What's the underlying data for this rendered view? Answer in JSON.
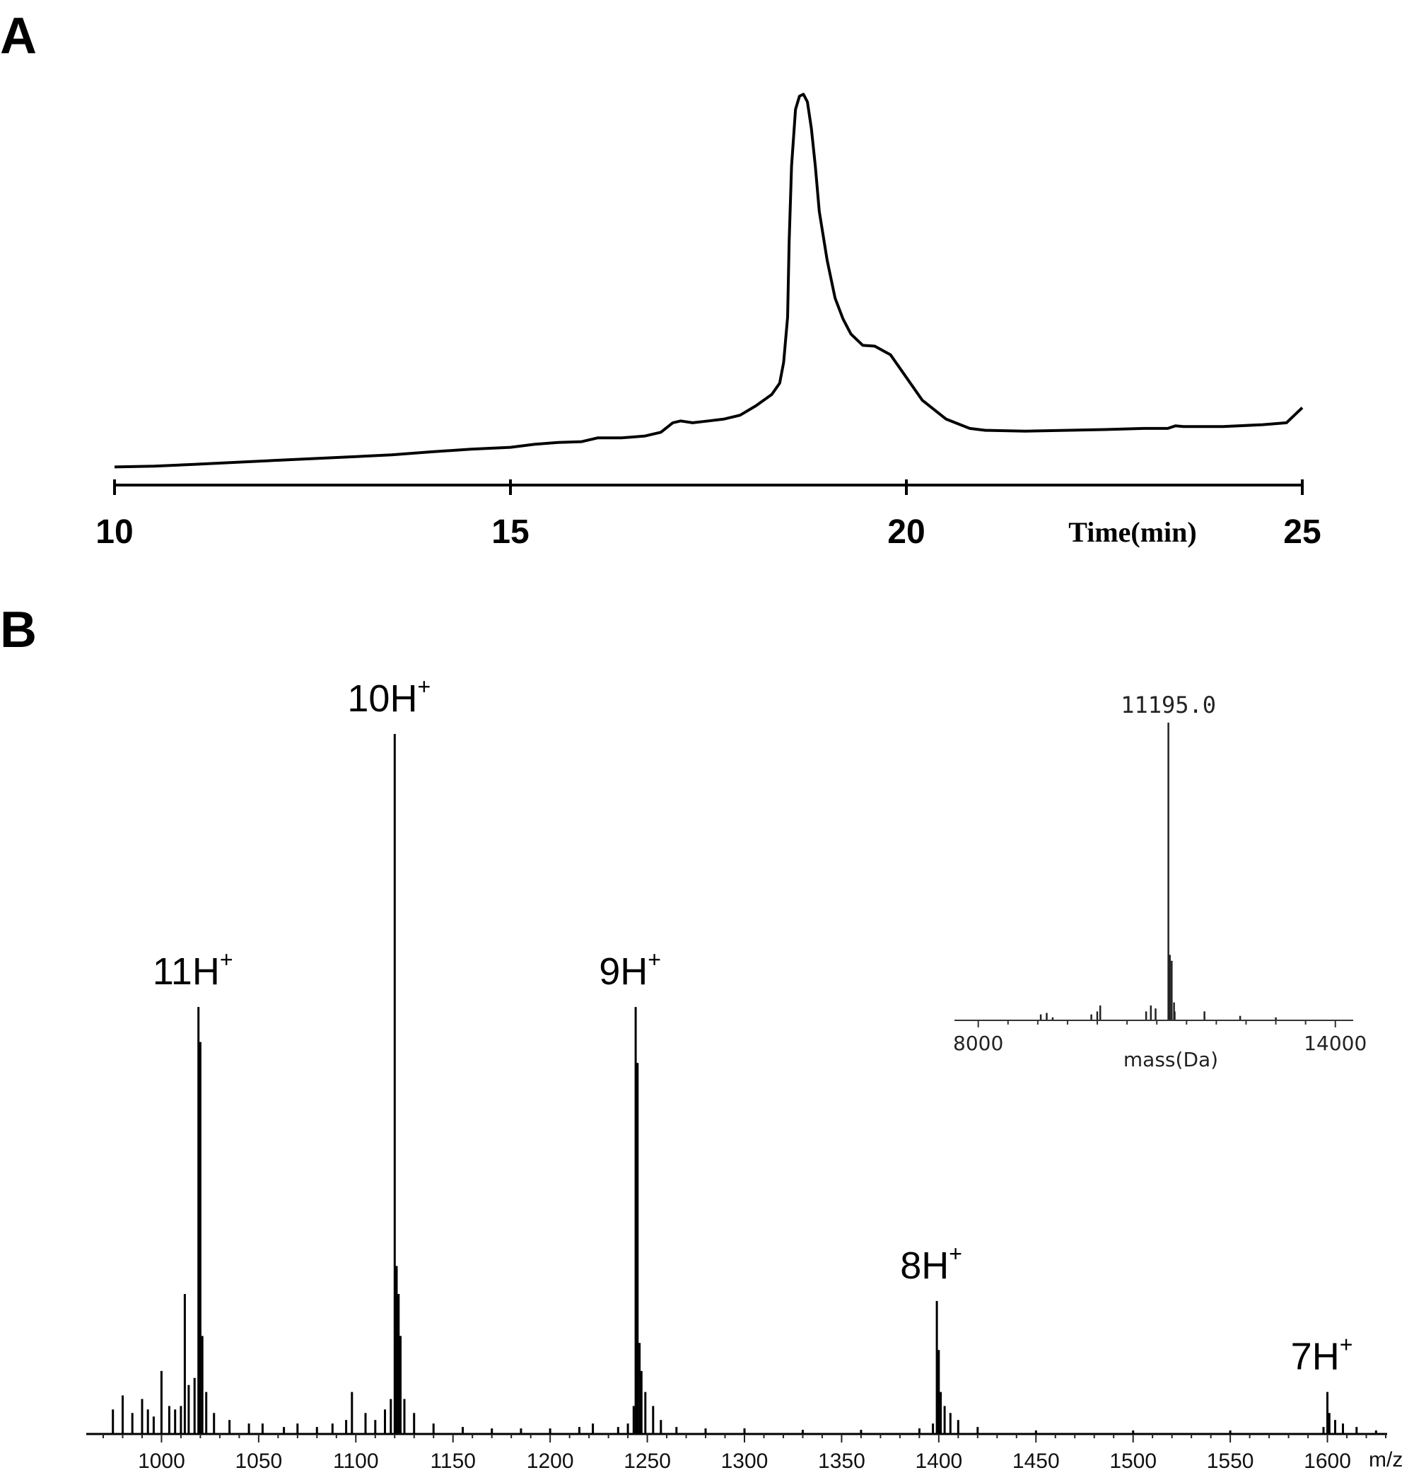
{
  "panels": {
    "a": {
      "letter": "A"
    },
    "b": {
      "letter": "B"
    }
  },
  "chart_data": [
    {
      "type": "line",
      "panel": "A",
      "xlabel": "Time(min)",
      "ylabel": "",
      "xlim": [
        10,
        25
      ],
      "ylim": [
        0,
        100
      ],
      "xticks": [
        10,
        15,
        20,
        25
      ],
      "grid": false,
      "series": [
        {
          "x": [
            10.0,
            10.5,
            11.0,
            11.5,
            12.0,
            12.5,
            13.0,
            13.5,
            14.0,
            14.5,
            15.0,
            15.3,
            15.6,
            15.9,
            16.1,
            16.4,
            16.7,
            16.9,
            17.05,
            17.15,
            17.3,
            17.5,
            17.7,
            17.9,
            18.1,
            18.3,
            18.4,
            18.45,
            18.5,
            18.52,
            18.55,
            18.6,
            18.65,
            18.7,
            18.75,
            18.8,
            18.85,
            18.9,
            19.0,
            19.1,
            19.2,
            19.3,
            19.45,
            19.6,
            19.8,
            20.0,
            20.2,
            20.5,
            20.8,
            21.0,
            21.5,
            22.0,
            22.5,
            23.0,
            23.3,
            23.4,
            23.5,
            24.0,
            24.5,
            24.8,
            24.9,
            25.0
          ],
          "y": [
            0.3,
            0.5,
            1.0,
            1.5,
            2.0,
            2.5,
            3.0,
            3.5,
            4.3,
            5.0,
            5.5,
            6.3,
            6.8,
            7.0,
            8.0,
            8.0,
            8.5,
            9.5,
            12.0,
            12.5,
            12.0,
            12.5,
            13.0,
            14.0,
            16.5,
            19.5,
            22.5,
            28.0,
            40.0,
            60.0,
            80.0,
            95.0,
            98.5,
            99.0,
            97.0,
            90.0,
            80.0,
            68.0,
            55.0,
            45.0,
            39.5,
            35.5,
            32.5,
            32.3,
            30.0,
            24.0,
            18.0,
            13.0,
            10.5,
            10.0,
            9.8,
            10.0,
            10.2,
            10.5,
            10.5,
            11.2,
            11.0,
            11.0,
            11.5,
            12.0,
            14.0,
            16.0
          ]
        }
      ]
    },
    {
      "type": "bar",
      "panel": "B",
      "xlabel": "m/z",
      "ylabel": "",
      "xlim": [
        962,
        1630
      ],
      "ylim": [
        0,
        100
      ],
      "xticks": [
        1000,
        1050,
        1100,
        1150,
        1200,
        1250,
        1300,
        1350,
        1400,
        1450,
        1500,
        1550,
        1600
      ],
      "grid": false,
      "annotations": [
        {
          "label": "11H",
          "sup": "+",
          "x": 1019
        },
        {
          "label": "10H",
          "sup": "+",
          "x": 1120
        },
        {
          "label": "9H",
          "sup": "+",
          "x": 1244
        },
        {
          "label": "8H",
          "sup": "+",
          "x": 1399
        },
        {
          "label": "7H",
          "sup": "+",
          "x": 1600
        }
      ],
      "peaks": [
        {
          "x": 975,
          "y": 3.5
        },
        {
          "x": 980,
          "y": 5.5
        },
        {
          "x": 985,
          "y": 3.0
        },
        {
          "x": 990,
          "y": 5.0
        },
        {
          "x": 993,
          "y": 3.5
        },
        {
          "x": 996,
          "y": 2.5
        },
        {
          "x": 1000,
          "y": 9.0
        },
        {
          "x": 1004,
          "y": 4.0
        },
        {
          "x": 1007,
          "y": 3.5
        },
        {
          "x": 1010,
          "y": 4.0
        },
        {
          "x": 1012,
          "y": 20.0
        },
        {
          "x": 1014,
          "y": 7.0
        },
        {
          "x": 1017,
          "y": 8.0
        },
        {
          "x": 1019,
          "y": 61.0
        },
        {
          "x": 1020,
          "y": 56.0
        },
        {
          "x": 1021,
          "y": 14.0
        },
        {
          "x": 1023,
          "y": 6.0
        },
        {
          "x": 1027,
          "y": 3.0
        },
        {
          "x": 1035,
          "y": 2.0
        },
        {
          "x": 1045,
          "y": 1.5
        },
        {
          "x": 1052,
          "y": 1.5
        },
        {
          "x": 1063,
          "y": 1.0
        },
        {
          "x": 1070,
          "y": 1.5
        },
        {
          "x": 1080,
          "y": 1.0
        },
        {
          "x": 1088,
          "y": 1.5
        },
        {
          "x": 1095,
          "y": 2.0
        },
        {
          "x": 1098,
          "y": 6.0
        },
        {
          "x": 1105,
          "y": 3.0
        },
        {
          "x": 1110,
          "y": 2.0
        },
        {
          "x": 1115,
          "y": 3.5
        },
        {
          "x": 1118,
          "y": 5.0
        },
        {
          "x": 1120,
          "y": 100.0
        },
        {
          "x": 1121,
          "y": 24.0
        },
        {
          "x": 1122,
          "y": 20.0
        },
        {
          "x": 1123,
          "y": 14.0
        },
        {
          "x": 1125,
          "y": 5.0
        },
        {
          "x": 1130,
          "y": 3.0
        },
        {
          "x": 1140,
          "y": 1.5
        },
        {
          "x": 1155,
          "y": 1.0
        },
        {
          "x": 1170,
          "y": 0.8
        },
        {
          "x": 1185,
          "y": 0.8
        },
        {
          "x": 1200,
          "y": 0.8
        },
        {
          "x": 1215,
          "y": 1.0
        },
        {
          "x": 1222,
          "y": 1.5
        },
        {
          "x": 1235,
          "y": 1.0
        },
        {
          "x": 1240,
          "y": 1.5
        },
        {
          "x": 1243,
          "y": 4.0
        },
        {
          "x": 1244,
          "y": 61.0
        },
        {
          "x": 1245,
          "y": 53.0
        },
        {
          "x": 1246,
          "y": 13.0
        },
        {
          "x": 1247,
          "y": 9.0
        },
        {
          "x": 1249,
          "y": 6.0
        },
        {
          "x": 1253,
          "y": 4.0
        },
        {
          "x": 1257,
          "y": 2.0
        },
        {
          "x": 1265,
          "y": 1.0
        },
        {
          "x": 1280,
          "y": 0.8
        },
        {
          "x": 1300,
          "y": 0.8
        },
        {
          "x": 1330,
          "y": 0.6
        },
        {
          "x": 1360,
          "y": 0.6
        },
        {
          "x": 1390,
          "y": 0.8
        },
        {
          "x": 1397,
          "y": 1.5
        },
        {
          "x": 1399,
          "y": 19.0
        },
        {
          "x": 1400,
          "y": 12.0
        },
        {
          "x": 1401,
          "y": 6.0
        },
        {
          "x": 1403,
          "y": 4.0
        },
        {
          "x": 1406,
          "y": 3.0
        },
        {
          "x": 1410,
          "y": 2.0
        },
        {
          "x": 1420,
          "y": 1.0
        },
        {
          "x": 1450,
          "y": 0.5
        },
        {
          "x": 1500,
          "y": 0.5
        },
        {
          "x": 1550,
          "y": 0.5
        },
        {
          "x": 1598,
          "y": 1.0
        },
        {
          "x": 1600,
          "y": 6.0
        },
        {
          "x": 1601,
          "y": 3.0
        },
        {
          "x": 1604,
          "y": 2.0
        },
        {
          "x": 1608,
          "y": 1.5
        },
        {
          "x": 1615,
          "y": 1.0
        },
        {
          "x": 1625,
          "y": 0.5
        }
      ]
    },
    {
      "type": "bar",
      "panel": "B-inset",
      "xlabel": "mass(Da)",
      "ylabel": "",
      "xlim": [
        7600,
        14300
      ],
      "ylim": [
        0,
        100
      ],
      "xticks": [
        8000,
        14000
      ],
      "grid": false,
      "annotations": [
        {
          "label": "11195.0",
          "x": 11195
        }
      ],
      "peaks": [
        {
          "x": 9050,
          "y": 2.0
        },
        {
          "x": 9150,
          "y": 2.5
        },
        {
          "x": 9250,
          "y": 1.0
        },
        {
          "x": 9900,
          "y": 2.0
        },
        {
          "x": 10000,
          "y": 3.0
        },
        {
          "x": 10050,
          "y": 5.0
        },
        {
          "x": 10820,
          "y": 3.0
        },
        {
          "x": 10900,
          "y": 5.0
        },
        {
          "x": 10980,
          "y": 4.0
        },
        {
          "x": 11195,
          "y": 100.0
        },
        {
          "x": 11220,
          "y": 22.0
        },
        {
          "x": 11250,
          "y": 20.0
        },
        {
          "x": 11290,
          "y": 6.0
        },
        {
          "x": 11300,
          "y": 3.0
        },
        {
          "x": 11800,
          "y": 3.0
        },
        {
          "x": 12400,
          "y": 1.5
        },
        {
          "x": 13000,
          "y": 1.0
        }
      ]
    }
  ]
}
